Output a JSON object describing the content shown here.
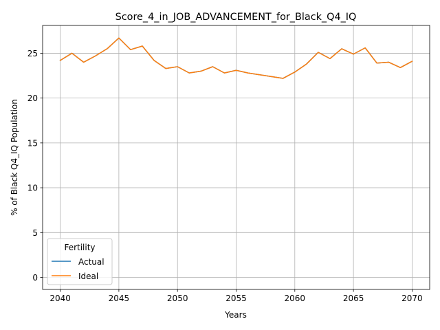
{
  "chart_data": {
    "type": "line",
    "title": "Score_4_in_JOB_ADVANCEMENT_for_Black_Q4_IQ",
    "xlabel": "Years",
    "ylabel": "% of Black Q4_IQ Population",
    "xlim": [
      2038.5,
      2071.5
    ],
    "ylim": [
      -1.34,
      28.1
    ],
    "xticks": [
      2040,
      2045,
      2050,
      2055,
      2060,
      2065,
      2070
    ],
    "yticks": [
      0,
      5,
      10,
      15,
      20,
      25
    ],
    "grid": true,
    "legend": {
      "title": "Fertility",
      "placement": "lower-left",
      "entries": [
        {
          "name": "Actual",
          "color": "#1f77b4"
        },
        {
          "name": "Ideal",
          "color": "#ff7f0e"
        }
      ]
    },
    "x": [
      2040,
      2041,
      2042,
      2043,
      2044,
      2045,
      2046,
      2047,
      2048,
      2049,
      2050,
      2051,
      2052,
      2053,
      2054,
      2055,
      2056,
      2057,
      2058,
      2059,
      2060,
      2061,
      2062,
      2063,
      2064,
      2065,
      2066,
      2067,
      2068,
      2069,
      2070
    ],
    "series": [
      {
        "name": "Actual",
        "color": "#1f77b4",
        "values": [
          24.2,
          25.0,
          24.0,
          24.7,
          25.5,
          26.7,
          25.4,
          25.8,
          24.2,
          23.3,
          23.5,
          22.8,
          23.0,
          23.5,
          22.8,
          23.1,
          22.8,
          22.6,
          22.4,
          22.2,
          22.9,
          23.8,
          25.1,
          24.4,
          25.5,
          24.9,
          25.6,
          23.9,
          24.0,
          23.4,
          24.1
        ]
      },
      {
        "name": "Ideal",
        "color": "#ff7f0e",
        "values": [
          24.2,
          25.0,
          24.0,
          24.7,
          25.5,
          26.7,
          25.4,
          25.8,
          24.2,
          23.3,
          23.5,
          22.8,
          23.0,
          23.5,
          22.8,
          23.1,
          22.8,
          22.6,
          22.4,
          22.2,
          22.9,
          23.8,
          25.1,
          24.4,
          25.5,
          24.9,
          25.6,
          23.9,
          24.0,
          23.4,
          24.1
        ]
      }
    ]
  }
}
